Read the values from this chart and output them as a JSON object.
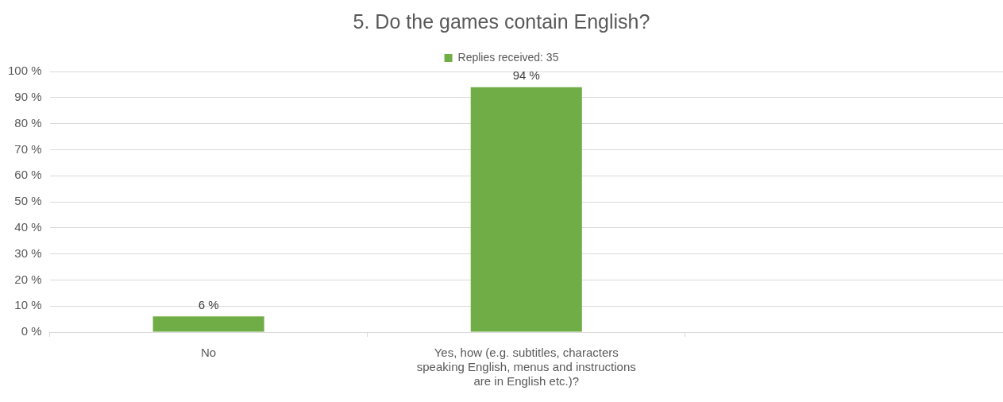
{
  "chart_data": {
    "type": "bar",
    "title": "5. Do the games contain English?",
    "categories": [
      "No",
      "Yes, how (e.g. subtitles, characters speaking English, menus and instructions are in English etc.)?",
      null
    ],
    "series": [
      {
        "name": "Replies received: 35",
        "color": "#70ad47",
        "values": [
          6,
          94,
          null
        ],
        "value_labels": [
          "6 %",
          "94 %",
          null
        ]
      }
    ],
    "ylim": [
      0,
      100
    ],
    "yticks": [
      {
        "value": 0,
        "label": "0 %"
      },
      {
        "value": 10,
        "label": "10 %"
      },
      {
        "value": 20,
        "label": "20 %"
      },
      {
        "value": 30,
        "label": "30 %"
      },
      {
        "value": 40,
        "label": "40 %"
      },
      {
        "value": 50,
        "label": "50 %"
      },
      {
        "value": 60,
        "label": "60 %"
      },
      {
        "value": 70,
        "label": "70 %"
      },
      {
        "value": 80,
        "label": "80 %"
      },
      {
        "value": 90,
        "label": "90 %"
      },
      {
        "value": 100,
        "label": "100 %"
      }
    ],
    "grid": "y",
    "legend": "top"
  }
}
